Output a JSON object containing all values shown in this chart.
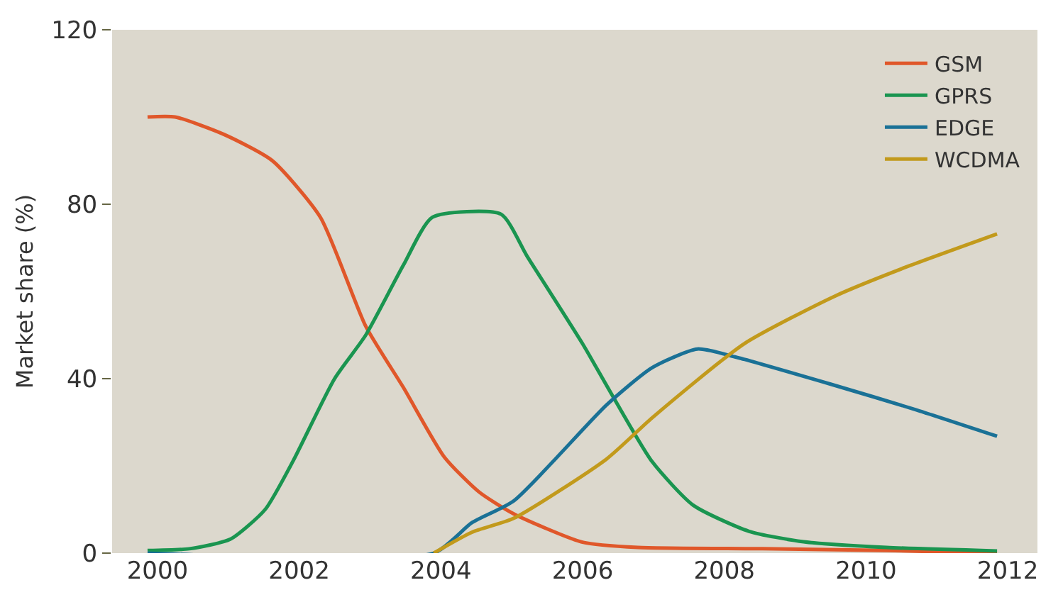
{
  "chart_data": {
    "type": "line",
    "ylabel": "Market share (%)",
    "xlim": [
      1999.36,
      2012.42
    ],
    "xticks": [
      2000,
      2002,
      2004,
      2006,
      2008,
      2010,
      2012
    ],
    "ylim": [
      0,
      120
    ],
    "yticks": [
      0,
      40,
      80,
      120
    ],
    "grid": false,
    "legend": "top right",
    "marker": "none",
    "line_style": "solid",
    "series": [
      {
        "name": "GSM",
        "color": "#e0572a",
        "x": [
          1999.86,
          2000.25,
          2000.94,
          2001.62,
          2002.3,
          2002.94,
          2003.47,
          2004.05,
          2004.54,
          2005.03,
          2006.0,
          2006.78,
          2008.54,
          2010.29,
          2011.85
        ],
        "values": [
          100,
          100,
          96,
          90,
          77,
          52,
          38,
          22,
          14,
          9,
          2.5,
          1.3,
          1,
          0.6,
          0
        ]
      },
      {
        "name": "GPRS",
        "color": "#1a9550",
        "x": [
          1999.86,
          2000.45,
          2001.03,
          2001.52,
          2001.91,
          2002.5,
          2002.94,
          2003.47,
          2003.88,
          2004.85,
          2005.22,
          2006.0,
          2006.39,
          2006.98,
          2007.56,
          2008.35,
          2009.12,
          2010.29,
          2011.85
        ],
        "values": [
          0.6,
          1,
          3.2,
          10,
          21,
          40,
          50,
          66,
          77,
          77.7,
          68,
          48,
          37,
          21,
          11,
          5,
          2.6,
          1.3,
          0.5
        ]
      },
      {
        "name": "EDGE",
        "color": "#1a7196",
        "x": [
          1999.86,
          2003.9,
          2004.44,
          2005.03,
          2006.34,
          2006.98,
          2007.62,
          2008.15,
          2009.51,
          2010.68,
          2011.85
        ],
        "values": [
          0,
          0,
          7,
          12,
          34,
          42.5,
          46.8,
          45,
          38.7,
          33,
          26.8
        ]
      },
      {
        "name": "WCDMA",
        "color": "#c29a1c",
        "x": [
          2003.9,
          2004.44,
          2005.03,
          2006.34,
          2006.98,
          2008.28,
          2009.57,
          2010.55,
          2011.85
        ],
        "values": [
          0,
          4.8,
          8,
          21.6,
          31,
          48,
          59,
          65.5,
          73.2
        ]
      }
    ]
  }
}
